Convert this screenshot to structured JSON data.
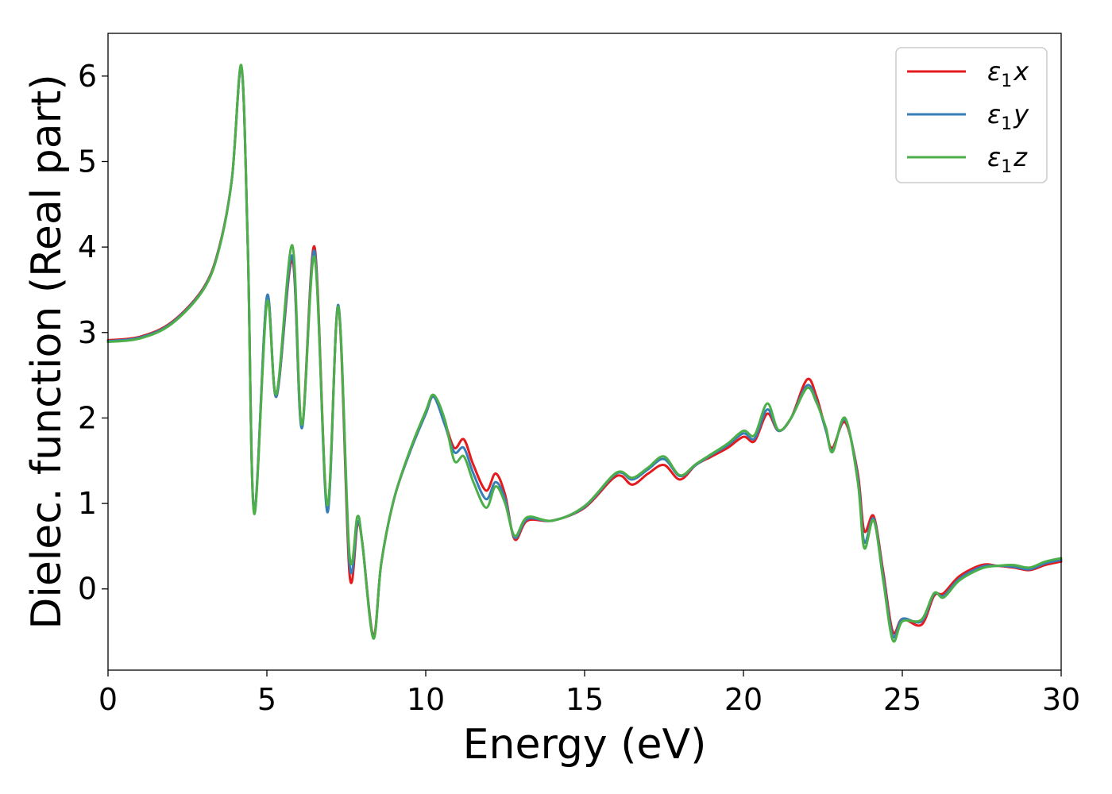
{
  "chart_data": {
    "type": "line",
    "xlabel": "Energy (eV)",
    "ylabel": "Dielec. function (Real part)",
    "xlim": [
      0,
      30
    ],
    "ylim": [
      -0.95,
      6.5
    ],
    "xticks": [
      0,
      5,
      10,
      15,
      20,
      25,
      30
    ],
    "yticks": [
      0,
      1,
      2,
      3,
      4,
      5,
      6
    ],
    "xtick_labels": [
      "0",
      "5",
      "10",
      "15",
      "20",
      "25",
      "30"
    ],
    "ytick_labels": [
      "0",
      "1",
      "2",
      "3",
      "4",
      "5",
      "6"
    ],
    "grid": false,
    "legend_position": "top-right",
    "series": [
      {
        "name": "ε₁x",
        "legend": {
          "symbol": "ε",
          "sub": "1",
          "var": "x"
        },
        "color": "#e41a1c",
        "x": [
          0,
          1,
          2,
          3,
          3.5,
          3.9,
          4.2,
          4.4,
          4.6,
          5.0,
          5.3,
          5.8,
          6.1,
          6.5,
          6.9,
          7.25,
          7.6,
          7.85,
          8.0,
          8.35,
          8.6,
          9.0,
          9.5,
          10.0,
          10.25,
          10.6,
          10.9,
          11.2,
          11.5,
          11.9,
          12.2,
          12.5,
          12.8,
          13.2,
          14.0,
          15.0,
          16.0,
          16.5,
          17.0,
          17.5,
          18.0,
          18.5,
          19.0,
          19.5,
          20.0,
          20.35,
          20.75,
          21.1,
          21.5,
          22.0,
          22.3,
          22.6,
          22.8,
          23.2,
          23.6,
          23.8,
          24.1,
          24.4,
          24.7,
          25.0,
          25.6,
          26.0,
          26.3,
          26.8,
          27.5,
          28.0,
          28.5,
          29.0,
          29.5,
          30.0
        ],
        "y": [
          2.91,
          2.95,
          3.12,
          3.52,
          4.0,
          4.8,
          6.1,
          4.0,
          0.9,
          3.4,
          2.25,
          3.85,
          1.9,
          4.0,
          0.95,
          3.3,
          0.18,
          0.75,
          0.55,
          -0.55,
          0.3,
          1.05,
          1.6,
          2.05,
          2.25,
          1.95,
          1.65,
          1.75,
          1.45,
          1.15,
          1.35,
          1.1,
          0.58,
          0.8,
          0.8,
          0.95,
          1.32,
          1.22,
          1.35,
          1.45,
          1.28,
          1.45,
          1.55,
          1.65,
          1.78,
          1.73,
          2.05,
          1.85,
          2.0,
          2.45,
          2.25,
          1.85,
          1.65,
          1.95,
          1.35,
          0.68,
          0.85,
          0.2,
          -0.5,
          -0.35,
          -0.42,
          -0.08,
          -0.05,
          0.15,
          0.28,
          0.27,
          0.25,
          0.22,
          0.28,
          0.32
        ]
      },
      {
        "name": "ε₁y",
        "legend": {
          "symbol": "ε",
          "sub": "1",
          "var": "y"
        },
        "color": "#377eb8",
        "x": [
          0,
          1,
          2,
          3,
          3.5,
          3.9,
          4.2,
          4.4,
          4.6,
          5.0,
          5.3,
          5.8,
          6.1,
          6.5,
          6.9,
          7.25,
          7.6,
          7.85,
          8.0,
          8.35,
          8.6,
          9.0,
          9.5,
          10.0,
          10.25,
          10.6,
          10.9,
          11.2,
          11.5,
          11.9,
          12.2,
          12.5,
          12.8,
          13.2,
          14.0,
          15.0,
          16.0,
          16.5,
          17.0,
          17.5,
          18.0,
          18.5,
          19.0,
          19.5,
          20.0,
          20.35,
          20.75,
          21.1,
          21.5,
          22.0,
          22.3,
          22.6,
          22.8,
          23.2,
          23.6,
          23.8,
          24.1,
          24.4,
          24.7,
          25.0,
          25.6,
          26.0,
          26.3,
          26.8,
          27.5,
          28.0,
          28.5,
          29.0,
          29.5,
          30.0
        ],
        "y": [
          2.9,
          2.94,
          3.11,
          3.51,
          3.99,
          4.8,
          6.1,
          4.0,
          0.9,
          3.42,
          2.25,
          3.9,
          1.88,
          3.95,
          0.9,
          3.32,
          0.3,
          0.78,
          0.55,
          -0.57,
          0.3,
          1.05,
          1.6,
          2.05,
          2.25,
          1.92,
          1.6,
          1.65,
          1.35,
          1.05,
          1.25,
          1.05,
          0.6,
          0.82,
          0.8,
          0.96,
          1.35,
          1.28,
          1.4,
          1.52,
          1.32,
          1.45,
          1.57,
          1.68,
          1.82,
          1.76,
          2.1,
          1.85,
          2.0,
          2.38,
          2.2,
          1.85,
          1.62,
          1.98,
          1.3,
          0.55,
          0.82,
          0.15,
          -0.55,
          -0.35,
          -0.38,
          -0.06,
          -0.08,
          0.12,
          0.26,
          0.27,
          0.26,
          0.23,
          0.3,
          0.34
        ]
      },
      {
        "name": "ε₁z",
        "legend": {
          "symbol": "ε",
          "sub": "1",
          "var": "z"
        },
        "color": "#4daf4a",
        "x": [
          0,
          1,
          2,
          3,
          3.5,
          3.9,
          4.2,
          4.4,
          4.6,
          5.0,
          5.3,
          5.8,
          6.1,
          6.5,
          6.9,
          7.25,
          7.6,
          7.85,
          8.0,
          8.35,
          8.6,
          9.0,
          9.5,
          10.0,
          10.25,
          10.6,
          10.9,
          11.2,
          11.5,
          11.9,
          12.2,
          12.5,
          12.8,
          13.2,
          14.0,
          15.0,
          16.0,
          16.5,
          17.0,
          17.5,
          18.0,
          18.5,
          19.0,
          19.5,
          20.0,
          20.35,
          20.75,
          21.1,
          21.5,
          22.0,
          22.3,
          22.6,
          22.8,
          23.2,
          23.6,
          23.8,
          24.1,
          24.4,
          24.7,
          25.0,
          25.6,
          26.0,
          26.3,
          26.8,
          27.5,
          28.0,
          28.5,
          29.0,
          29.5,
          30.0
        ],
        "y": [
          2.89,
          2.93,
          3.1,
          3.5,
          3.98,
          4.8,
          6.12,
          4.0,
          0.88,
          3.35,
          2.28,
          4.02,
          1.92,
          3.88,
          0.98,
          3.3,
          0.4,
          0.85,
          0.55,
          -0.58,
          0.3,
          1.05,
          1.62,
          2.08,
          2.27,
          1.98,
          1.5,
          1.55,
          1.25,
          0.95,
          1.2,
          1.0,
          0.62,
          0.84,
          0.8,
          0.97,
          1.36,
          1.3,
          1.42,
          1.55,
          1.33,
          1.46,
          1.58,
          1.7,
          1.85,
          1.8,
          2.17,
          1.86,
          2.0,
          2.35,
          2.18,
          1.88,
          1.6,
          2.0,
          1.25,
          0.48,
          0.8,
          0.1,
          -0.6,
          -0.38,
          -0.36,
          -0.05,
          -0.1,
          0.1,
          0.24,
          0.27,
          0.28,
          0.25,
          0.32,
          0.36
        ]
      }
    ]
  }
}
